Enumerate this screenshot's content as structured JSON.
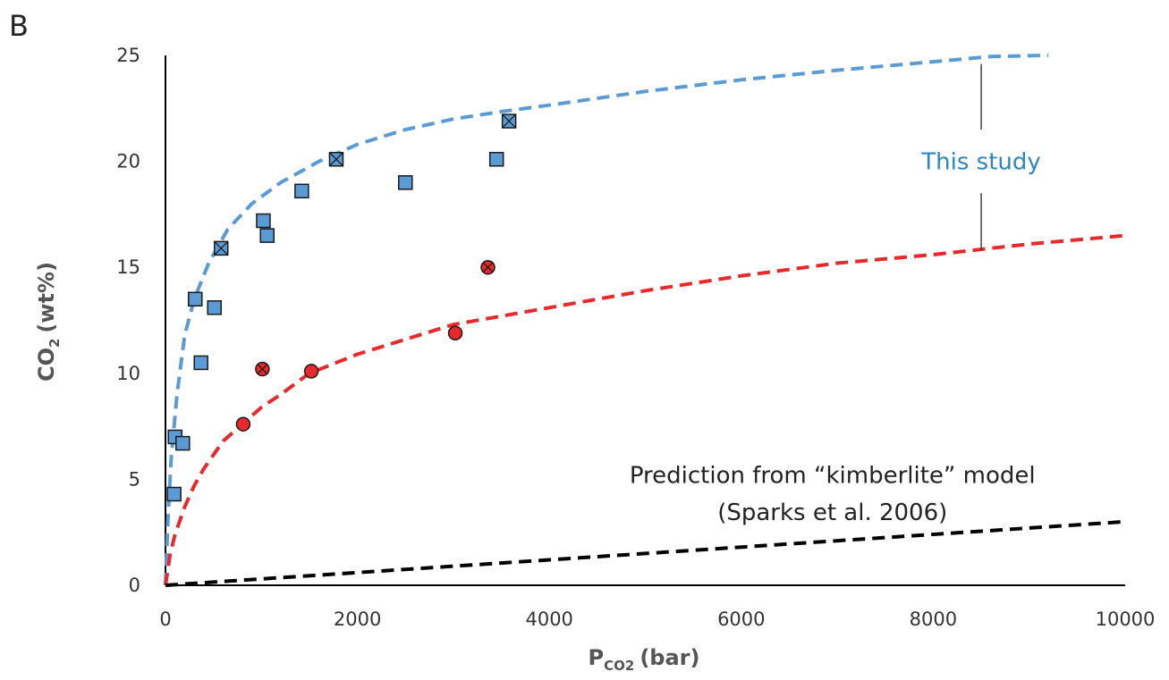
{
  "panel_label": "B",
  "chart_data": {
    "type": "scatter",
    "xlabel": {
      "main": "P",
      "sub": "CO2",
      "unit": "(bar)"
    },
    "ylabel": {
      "main": "CO",
      "sub": "2",
      "unit": "(wt%)"
    },
    "xlim": [
      0,
      10000
    ],
    "ylim": [
      0,
      25
    ],
    "xticks": [
      0,
      2000,
      4000,
      6000,
      8000,
      10000
    ],
    "yticks": [
      0,
      5,
      10,
      15,
      20,
      25
    ],
    "grid": false,
    "legend": "none",
    "colors": {
      "blue": "#5b9bd5",
      "red": "#e8292b",
      "black": "#000000"
    },
    "series": [
      {
        "marker": "square",
        "color": "#5b9bd5",
        "points": [
          {
            "x": 90,
            "y": 4.3,
            "crossed": false
          },
          {
            "x": 100,
            "y": 7.0,
            "crossed": false
          },
          {
            "x": 180,
            "y": 6.7,
            "crossed": false
          },
          {
            "x": 310,
            "y": 13.5,
            "crossed": false
          },
          {
            "x": 370,
            "y": 10.5,
            "crossed": false
          },
          {
            "x": 510,
            "y": 13.1,
            "crossed": false
          },
          {
            "x": 580,
            "y": 15.9,
            "crossed": true
          },
          {
            "x": 1020,
            "y": 17.2,
            "crossed": false
          },
          {
            "x": 1060,
            "y": 16.5,
            "crossed": false
          },
          {
            "x": 1420,
            "y": 18.6,
            "crossed": false
          },
          {
            "x": 1780,
            "y": 20.1,
            "crossed": true
          },
          {
            "x": 2500,
            "y": 19.0,
            "crossed": false
          },
          {
            "x": 3450,
            "y": 20.1,
            "crossed": false
          },
          {
            "x": 3580,
            "y": 21.9,
            "crossed": true
          }
        ]
      },
      {
        "marker": "circle",
        "color": "#e8292b",
        "points": [
          {
            "x": 810,
            "y": 7.6,
            "crossed": false
          },
          {
            "x": 1010,
            "y": 10.2,
            "crossed": true
          },
          {
            "x": 1520,
            "y": 10.1,
            "crossed": false
          },
          {
            "x": 3020,
            "y": 11.9,
            "crossed": false
          },
          {
            "x": 3360,
            "y": 15.0,
            "crossed": true
          }
        ]
      }
    ],
    "curves": [
      {
        "color": "#5b9bd5",
        "style": "dashed",
        "points": [
          [
            0,
            0
          ],
          [
            25,
            3.0
          ],
          [
            60,
            6.0
          ],
          [
            120,
            9.0
          ],
          [
            200,
            11.8
          ],
          [
            300,
            13.5
          ],
          [
            450,
            15.2
          ],
          [
            650,
            16.8
          ],
          [
            900,
            18.0
          ],
          [
            1200,
            19.0
          ],
          [
            1600,
            20.0
          ],
          [
            2000,
            20.8
          ],
          [
            2500,
            21.5
          ],
          [
            3000,
            22.0
          ],
          [
            3500,
            22.35
          ],
          [
            4000,
            22.65
          ],
          [
            5000,
            23.3
          ],
          [
            6000,
            23.85
          ],
          [
            7000,
            24.3
          ],
          [
            8000,
            24.7
          ],
          [
            8600,
            24.95
          ],
          [
            9200,
            25.0
          ]
        ]
      },
      {
        "color": "#e8292b",
        "style": "dashed",
        "points": [
          [
            0,
            0
          ],
          [
            50,
            1.5
          ],
          [
            100,
            2.4
          ],
          [
            200,
            3.7
          ],
          [
            300,
            4.7
          ],
          [
            400,
            5.5
          ],
          [
            600,
            6.8
          ],
          [
            800,
            7.6
          ],
          [
            1000,
            8.4
          ],
          [
            1200,
            9.0
          ],
          [
            1500,
            10.0
          ],
          [
            2000,
            10.9
          ],
          [
            2500,
            11.6
          ],
          [
            3000,
            12.3
          ],
          [
            3500,
            12.7
          ],
          [
            4000,
            13.1
          ],
          [
            5000,
            13.9
          ],
          [
            6000,
            14.6
          ],
          [
            7000,
            15.2
          ],
          [
            8000,
            15.6
          ],
          [
            9000,
            16.1
          ],
          [
            10000,
            16.5
          ]
        ]
      },
      {
        "color": "#000000",
        "style": "dashed",
        "points": [
          [
            0,
            0
          ],
          [
            10000,
            3.0
          ]
        ]
      }
    ],
    "annotations": [
      {
        "text": "This study",
        "color": "#2e86c1",
        "x": 8500,
        "y": 20.0
      },
      {
        "text": "Prediction from “kimberlite” model",
        "color": "#222222",
        "x": 6950,
        "y": 5.2
      },
      {
        "text": "(Sparks et al. 2006)",
        "color": "#222222",
        "x": 6950,
        "y": 3.45
      }
    ],
    "bracket": {
      "x": 8500,
      "y_top": 24.6,
      "y_bottom": 15.8,
      "gap": [
        21.5,
        18.5
      ]
    }
  }
}
